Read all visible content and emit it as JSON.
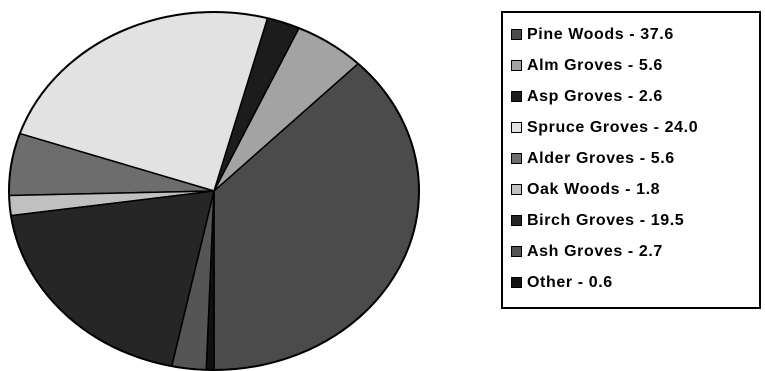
{
  "chart_data": {
    "type": "pie",
    "start": "bottom, clockwise",
    "slices": [
      {
        "label": "Pine Woods - 37.6",
        "value": 37.6,
        "color": "#4b4b4b"
      },
      {
        "label": "Alm Groves - 5.6",
        "value": 5.6,
        "color": "#a3a3a3"
      },
      {
        "label": "Asp Groves - 2.6",
        "value": 2.6,
        "color": "#1c1c1c"
      },
      {
        "label": "Spruce Groves - 24.0",
        "value": 24.0,
        "color": "#e2e2e2"
      },
      {
        "label": "Alder Groves - 5.6",
        "value": 5.6,
        "color": "#6d6d6d"
      },
      {
        "label": "Oak Woods - 1.8",
        "value": 1.8,
        "color": "#c0c0c0"
      },
      {
        "label": "Birch Groves - 19.5",
        "value": 19.5,
        "color": "#262626"
      },
      {
        "label": "Ash Groves - 2.7",
        "value": 2.7,
        "color": "#555555"
      },
      {
        "label": "Other - 0.6",
        "value": 0.6,
        "color": "#111111"
      }
    ],
    "legend": "right"
  }
}
